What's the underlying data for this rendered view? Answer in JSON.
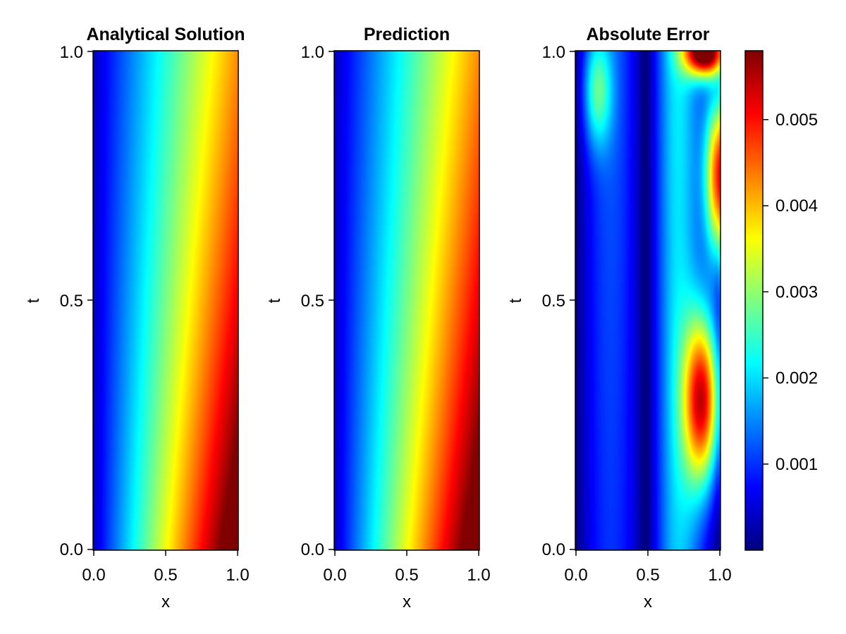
{
  "chart_data": [
    {
      "type": "heatmap",
      "title": "Analytical Solution",
      "xlabel": "x",
      "ylabel": "t",
      "xlim": [
        0.0,
        1.0
      ],
      "ylim": [
        0.0,
        1.0
      ],
      "xticks": [
        "0.0",
        "0.5",
        "1.0"
      ],
      "yticks": [
        "0.0",
        "0.5",
        "1.0"
      ],
      "colormap": "jet",
      "description_values": {
        "x": [
          0.0,
          0.25,
          0.5,
          0.75,
          1.0
        ],
        "t": [
          0.0,
          0.5,
          1.0
        ],
        "z_normalized_t0": [
          0.0,
          0.28,
          0.55,
          0.8,
          1.0
        ],
        "z_normalized_t1": [
          0.0,
          0.2,
          0.42,
          0.62,
          0.7
        ]
      }
    },
    {
      "type": "heatmap",
      "title": "Prediction",
      "xlabel": "x",
      "ylabel": "t",
      "xlim": [
        0.0,
        1.0
      ],
      "ylim": [
        0.0,
        1.0
      ],
      "xticks": [
        "0.0",
        "0.5",
        "1.0"
      ],
      "yticks": [
        "0.0",
        "0.5",
        "1.0"
      ],
      "colormap": "jet"
    },
    {
      "type": "heatmap",
      "title": "Absolute Error",
      "xlabel": "x",
      "ylabel": "t",
      "xlim": [
        0.0,
        1.0
      ],
      "ylim": [
        0.0,
        1.0
      ],
      "xticks": [
        "0.0",
        "0.5",
        "1.0"
      ],
      "yticks": [
        "0.0",
        "0.5",
        "1.0"
      ],
      "colormap": "jet",
      "colorbar": {
        "range": [
          0.0,
          0.0058
        ],
        "ticks": [
          0.001,
          0.002,
          0.003,
          0.004,
          0.005
        ],
        "tick_labels": [
          "0.001",
          "0.002",
          "0.003",
          "0.004",
          "0.005"
        ]
      },
      "features": [
        {
          "x": 0.9,
          "t": 0.3,
          "value": 0.0045
        },
        {
          "x": 0.95,
          "t": 0.75,
          "value": 0.0048
        },
        {
          "x": 0.9,
          "t": 1.0,
          "value": 0.0058
        },
        {
          "x": 0.15,
          "t": 0.95,
          "value": 0.002
        }
      ]
    }
  ]
}
